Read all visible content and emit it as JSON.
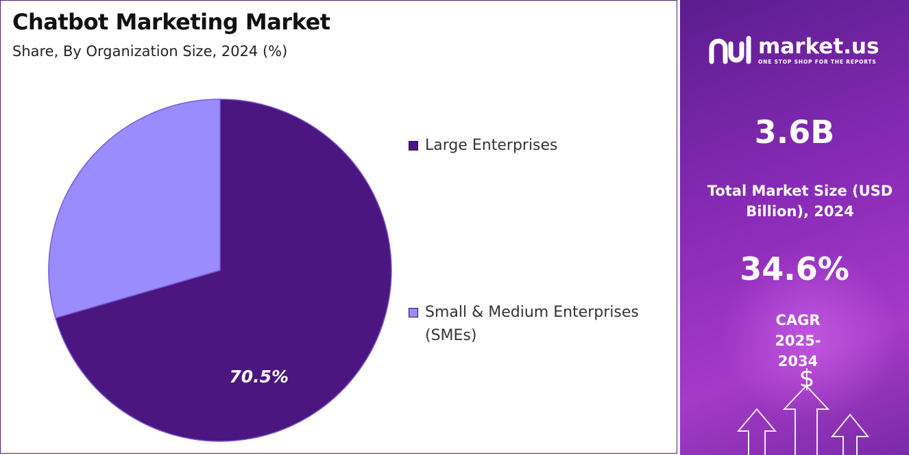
{
  "header": {
    "title": "Chatbot Marketing Market",
    "subtitle": "Share, By Organization Size, 2024 (%)"
  },
  "chart_data": {
    "type": "pie",
    "title": "Chatbot Marketing Market",
    "subtitle": "Share, By Organization Size, 2024 (%)",
    "categories": [
      "Large Enterprises",
      "Small & Medium Enterprises (SMEs)"
    ],
    "values": [
      70.5,
      29.5
    ],
    "colors": [
      "#4b167f",
      "#9a8cfd"
    ],
    "data_labels": [
      "70.5%",
      ""
    ],
    "legend_position": "right"
  },
  "legend": {
    "items": [
      {
        "label": "Large Enterprises",
        "color": "#4b167f"
      },
      {
        "label": "Small & Medium Enterprises (SMEs)",
        "color": "#9a8cfd"
      }
    ]
  },
  "side_panel": {
    "brand": {
      "name": "market.us",
      "tagline": "ONE STOP SHOP FOR THE REPORTS",
      "icon": "market-us-logo-icon"
    },
    "market_size_value": "3.6B",
    "market_size_label": "Total Market Size (USD Billion), 2024",
    "cagr_value": "34.6%",
    "cagr_label": "CAGR 2025-2034",
    "dollar_symbol": "$",
    "accent_color": "#8a2bb8"
  }
}
